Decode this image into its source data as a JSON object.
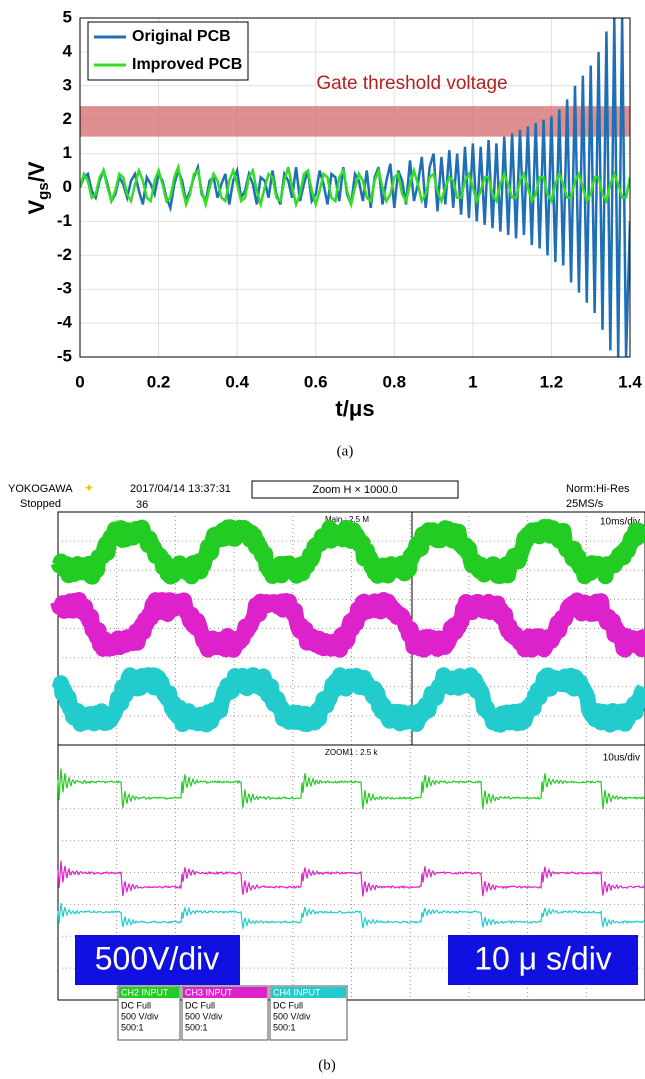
{
  "chart_data": {
    "type": "line",
    "ylabel": [
      "V",
      "gs",
      "/V"
    ],
    "xlabel": "t/μs",
    "xlim": [
      0,
      1.4
    ],
    "ylim": [
      -5,
      5
    ],
    "xticks": [
      0,
      0.2,
      0.4,
      0.6,
      0.8,
      1,
      1.2,
      1.4
    ],
    "yticks": [
      -5,
      -4,
      -3,
      -2,
      -1,
      0,
      1,
      2,
      3,
      4,
      5
    ],
    "grid": true,
    "legend": "upper left",
    "threshold_band": [
      1.5,
      2.4
    ],
    "band_color": "#d46a6a",
    "annotation": "Gate threshold voltage",
    "annotation_color": "#b22222",
    "x": [
      0,
      0.01,
      0.02,
      0.03,
      0.04,
      0.05,
      0.06,
      0.07,
      0.08,
      0.09,
      0.1,
      0.11,
      0.12,
      0.13,
      0.14,
      0.15,
      0.16,
      0.17,
      0.18,
      0.19,
      0.2,
      0.21,
      0.22,
      0.23,
      0.24,
      0.25,
      0.26,
      0.27,
      0.28,
      0.29,
      0.3,
      0.31,
      0.32,
      0.33,
      0.34,
      0.35,
      0.36,
      0.37,
      0.38,
      0.39,
      0.4,
      0.41,
      0.42,
      0.43,
      0.44,
      0.45,
      0.46,
      0.47,
      0.48,
      0.49,
      0.5,
      0.51,
      0.52,
      0.53,
      0.54,
      0.55,
      0.56,
      0.57,
      0.58,
      0.59,
      0.6,
      0.61,
      0.62,
      0.63,
      0.64,
      0.65,
      0.66,
      0.67,
      0.68,
      0.69,
      0.7,
      0.71,
      0.72,
      0.73,
      0.74,
      0.75,
      0.76,
      0.77,
      0.78,
      0.79,
      0.8,
      0.81,
      0.82,
      0.83,
      0.84,
      0.85,
      0.86,
      0.87,
      0.88,
      0.89,
      0.9,
      0.91,
      0.92,
      0.93,
      0.94,
      0.95,
      0.96,
      0.97,
      0.98,
      0.99,
      1,
      1.01,
      1.02,
      1.03,
      1.04,
      1.05,
      1.06,
      1.07,
      1.08,
      1.09,
      1.1,
      1.11,
      1.12,
      1.13,
      1.14,
      1.15,
      1.16,
      1.17,
      1.18,
      1.19,
      1.2,
      1.21,
      1.22,
      1.23,
      1.24,
      1.25,
      1.26,
      1.27,
      1.28,
      1.29,
      1.3,
      1.31,
      1.32,
      1.33,
      1.34,
      1.35,
      1.36,
      1.37,
      1.38,
      1.39,
      1.4
    ],
    "series": [
      {
        "name": "Original PCB",
        "color": "#1f6fb4",
        "values": [
          0,
          0.3,
          0.4,
          -0.1,
          -0.3,
          0.2,
          0.5,
          0.1,
          -0.4,
          -0.2,
          0.3,
          0.1,
          -0.3,
          0.2,
          0.4,
          -0.1,
          -0.5,
          0.3,
          0.1,
          -0.2,
          0.4,
          0.2,
          -0.3,
          -0.6,
          0.1,
          0.5,
          0.2,
          -0.4,
          -0.1,
          0.3,
          0.6,
          -0.2,
          -0.4,
          0.2,
          0.3,
          -0.3,
          0.1,
          0.4,
          -0.5,
          0.2,
          0.5,
          -0.3,
          -0.1,
          0.4,
          0.1,
          -0.5,
          0.3,
          0.2,
          -0.3,
          0.5,
          -0.2,
          -0.5,
          0.4,
          0.2,
          -0.3,
          0.6,
          -0.4,
          0.1,
          0.5,
          -0.4,
          -0.2,
          0.5,
          0.1,
          -0.5,
          0.4,
          0.3,
          -0.4,
          0.6,
          -0.2,
          -0.5,
          0.4,
          0.2,
          -0.4,
          0.5,
          -0.6,
          0.3,
          0.6,
          -0.5,
          0.2,
          0.7,
          -0.6,
          0.5,
          0.2,
          -0.5,
          0.8,
          -0.4,
          0.1,
          0.9,
          -0.6,
          0.6,
          1.0,
          -0.7,
          0.9,
          -0.5,
          1.1,
          -0.6,
          1.0,
          -0.8,
          1.2,
          -0.9,
          1.3,
          -1.0,
          1.2,
          -1.1,
          1.4,
          -1.2,
          1.3,
          -1.3,
          1.5,
          -1.4,
          1.6,
          -1.5,
          1.7,
          -1.4,
          1.8,
          -1.7,
          1.9,
          -1.8,
          2.0,
          -2.0,
          2.1,
          -2.2,
          2.3,
          -2.3,
          2.6,
          -2.8,
          3.0,
          -3.1,
          3.3,
          -3.4,
          3.6,
          -3.7,
          4.0,
          -4.2,
          4.6,
          -4.8,
          5,
          -5,
          5,
          -5,
          -1
        ]
      },
      {
        "name": "Improved PCB",
        "color": "#33dd22",
        "values": [
          0,
          0.4,
          0.2,
          -0.3,
          -0.2,
          0.3,
          0.5,
          0.0,
          -0.4,
          -0.1,
          0.4,
          0.3,
          -0.2,
          -0.4,
          0.1,
          0.5,
          0.2,
          -0.3,
          -0.4,
          0.2,
          0.5,
          0.1,
          -0.4,
          -0.3,
          0.3,
          0.6,
          0.0,
          -0.5,
          -0.2,
          0.4,
          0.5,
          -0.1,
          -0.5,
          0.0,
          0.4,
          0.2,
          -0.3,
          -0.4,
          0.2,
          0.5,
          0.1,
          -0.4,
          -0.3,
          0.3,
          0.5,
          -0.1,
          -0.5,
          0.0,
          0.4,
          0.3,
          -0.3,
          -0.4,
          0.2,
          0.6,
          0.0,
          -0.5,
          -0.2,
          0.4,
          0.5,
          -0.1,
          -0.5,
          -0.1,
          0.4,
          0.3,
          -0.3,
          -0.4,
          0.3,
          0.5,
          -0.1,
          -0.5,
          0.0,
          0.4,
          0.2,
          -0.3,
          -0.4,
          0.2,
          0.5,
          0.0,
          -0.4,
          -0.2,
          0.3,
          0.4,
          -0.2,
          -0.4,
          0.1,
          0.5,
          0.1,
          -0.4,
          -0.2,
          0.3,
          0.4,
          -0.1,
          -0.4,
          0.0,
          0.3,
          0.2,
          -0.3,
          -0.3,
          0.2,
          0.4,
          0.0,
          -0.4,
          -0.1,
          0.3,
          0.3,
          -0.2,
          -0.4,
          0.1,
          0.4,
          0.1,
          -0.3,
          -0.3,
          0.2,
          0.4,
          0.0,
          -0.4,
          -0.2,
          0.3,
          0.3,
          -0.2,
          -0.4,
          0.1,
          0.4,
          0.1,
          -0.3,
          -0.3,
          0.2,
          0.4,
          0.0,
          -0.4,
          -0.2,
          0.3,
          0.3,
          -0.2,
          -0.4,
          0.1,
          0.4,
          0.1,
          -0.3,
          -0.3,
          0.3
        ]
      }
    ]
  },
  "caption_a": "(a)",
  "caption_b": "(b)",
  "scope": {
    "brand": "YOKOGAWA",
    "timestamp": "2017/04/14 13:37:31",
    "status": "Stopped",
    "trigger_count": "36",
    "zoom": "Zoom H × 1000.0",
    "mode": "Norm:Hi-Res",
    "sample_rate": "25MS/s",
    "main_label": "Main : 2.5 M",
    "main_div": "10ms/div",
    "zoom_label": "ZOOM1 : 2.5 k",
    "zoom_div": "10us/div",
    "volt_box": "500V/div",
    "time_box": "10 μ s/div",
    "channels": [
      {
        "name": "CH2 INPUT",
        "color": "#22cc22",
        "lines": [
          "DC Full",
          "500 V/div",
          "500:1"
        ]
      },
      {
        "name": "CH3 INPUT",
        "color": "#dd22cc",
        "lines": [
          "DC Full",
          "500 V/div",
          "500:1"
        ]
      },
      {
        "name": "CH4 INPUT",
        "color": "#22cccc",
        "lines": [
          "DC Full",
          "500 V/div",
          "500:1"
        ]
      }
    ]
  }
}
